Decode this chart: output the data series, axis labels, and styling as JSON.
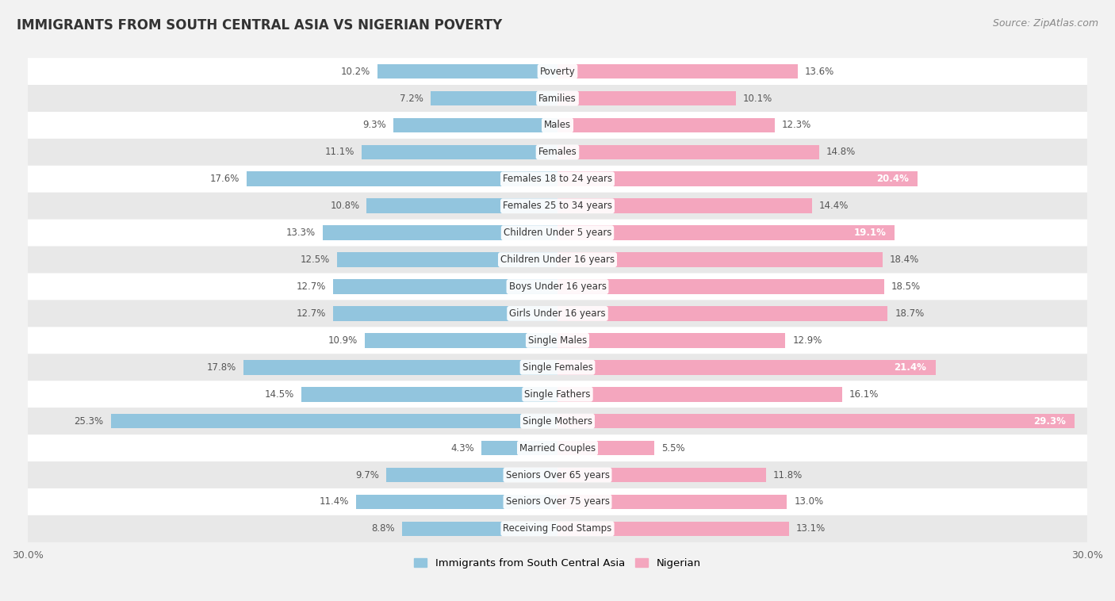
{
  "title": "IMMIGRANTS FROM SOUTH CENTRAL ASIA VS NIGERIAN POVERTY",
  "source": "Source: ZipAtlas.com",
  "categories": [
    "Poverty",
    "Families",
    "Males",
    "Females",
    "Females 18 to 24 years",
    "Females 25 to 34 years",
    "Children Under 5 years",
    "Children Under 16 years",
    "Boys Under 16 years",
    "Girls Under 16 years",
    "Single Males",
    "Single Females",
    "Single Fathers",
    "Single Mothers",
    "Married Couples",
    "Seniors Over 65 years",
    "Seniors Over 75 years",
    "Receiving Food Stamps"
  ],
  "left_values": [
    10.2,
    7.2,
    9.3,
    11.1,
    17.6,
    10.8,
    13.3,
    12.5,
    12.7,
    12.7,
    10.9,
    17.8,
    14.5,
    25.3,
    4.3,
    9.7,
    11.4,
    8.8
  ],
  "right_values": [
    13.6,
    10.1,
    12.3,
    14.8,
    20.4,
    14.4,
    19.1,
    18.4,
    18.5,
    18.7,
    12.9,
    21.4,
    16.1,
    29.3,
    5.5,
    11.8,
    13.0,
    13.1
  ],
  "left_color": "#92C5DE",
  "right_color": "#F4A6BE",
  "axis_max": 30.0,
  "legend_left": "Immigrants from South Central Asia",
  "legend_right": "Nigerian",
  "background_color": "#f2f2f2",
  "row_color_even": "#ffffff",
  "row_color_odd": "#e8e8e8",
  "title_fontsize": 12,
  "source_fontsize": 9,
  "value_fontsize": 8.5,
  "category_fontsize": 8.5,
  "tick_fontsize": 9
}
